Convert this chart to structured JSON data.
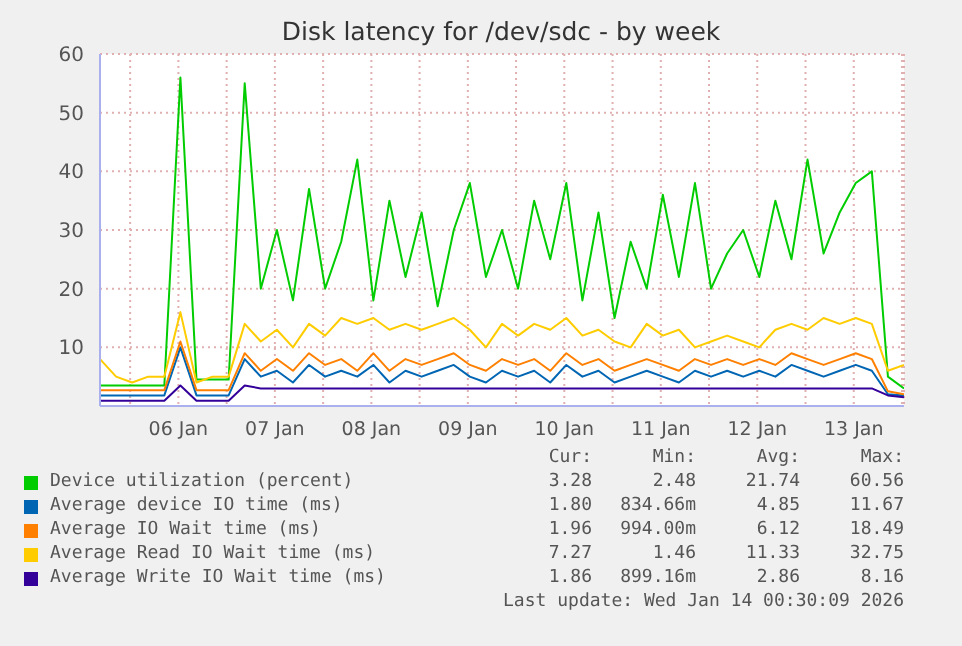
{
  "chart_data": {
    "type": "line",
    "title": "Disk latency for /dev/sdc - by week",
    "x": [
      "2026-01-05T16:30",
      "2026-01-05T20:30",
      "2026-01-06T00:30",
      "2026-01-06T04:30",
      "2026-01-06T08:30",
      "2026-01-06T12:30",
      "2026-01-06T16:30",
      "2026-01-06T20:30",
      "2026-01-07T00:30",
      "2026-01-07T04:30",
      "2026-01-07T08:30",
      "2026-01-07T12:30",
      "2026-01-07T16:30",
      "2026-01-07T20:30",
      "2026-01-08T00:30",
      "2026-01-08T04:30",
      "2026-01-08T08:30",
      "2026-01-08T12:30",
      "2026-01-08T16:30",
      "2026-01-08T20:30",
      "2026-01-09T00:30",
      "2026-01-09T04:30",
      "2026-01-09T08:30",
      "2026-01-09T12:30",
      "2026-01-09T16:30",
      "2026-01-09T20:30",
      "2026-01-10T00:30",
      "2026-01-10T04:30",
      "2026-01-10T08:30",
      "2026-01-10T12:30",
      "2026-01-10T16:30",
      "2026-01-10T20:30",
      "2026-01-11T00:30",
      "2026-01-11T04:30",
      "2026-01-11T08:30",
      "2026-01-11T12:30",
      "2026-01-11T16:30",
      "2026-01-11T20:30",
      "2026-01-12T00:30",
      "2026-01-12T04:30",
      "2026-01-12T08:30",
      "2026-01-12T12:30",
      "2026-01-12T16:30",
      "2026-01-12T20:30",
      "2026-01-13T00:30",
      "2026-01-13T04:30",
      "2026-01-13T08:30",
      "2026-01-13T12:30",
      "2026-01-13T16:30",
      "2026-01-13T20:30",
      "2026-01-14T00:30"
    ],
    "series": [
      {
        "name": "Device utilization (percent)",
        "color": "#00cc00",
        "values": [
          3.5,
          3.5,
          3.5,
          3.5,
          3.5,
          56,
          4.5,
          4.5,
          4.5,
          55,
          20,
          30,
          18,
          37,
          20,
          28,
          42,
          18,
          35,
          22,
          33,
          17,
          30,
          38,
          22,
          30,
          20,
          35,
          25,
          38,
          18,
          33,
          15,
          28,
          20,
          36,
          22,
          38,
          20,
          26,
          30,
          22,
          35,
          25,
          42,
          26,
          33,
          38,
          40,
          5,
          3
        ]
      },
      {
        "name": "Average device IO time (ms)",
        "color": "#0066b3",
        "values": [
          1.8,
          1.8,
          1.8,
          1.8,
          1.8,
          10,
          1.8,
          1.8,
          1.8,
          8,
          5,
          6,
          4,
          7,
          5,
          6,
          5,
          7,
          4,
          6,
          5,
          6,
          7,
          5,
          4,
          6,
          5,
          6,
          4,
          7,
          5,
          6,
          4,
          5,
          6,
          5,
          4,
          6,
          5,
          6,
          5,
          6,
          5,
          7,
          6,
          5,
          6,
          7,
          6,
          2,
          1.8
        ]
      },
      {
        "name": "Average IO Wait time (ms)",
        "color": "#ff8000",
        "values": [
          2.7,
          2.7,
          2.7,
          2.7,
          2.7,
          11,
          2.7,
          2.7,
          2.7,
          9,
          6,
          8,
          6,
          9,
          7,
          8,
          6,
          9,
          6,
          8,
          7,
          8,
          9,
          7,
          6,
          8,
          7,
          8,
          6,
          9,
          7,
          8,
          6,
          7,
          8,
          7,
          6,
          8,
          7,
          8,
          7,
          8,
          7,
          9,
          8,
          7,
          8,
          9,
          8,
          2.5,
          2
        ]
      },
      {
        "name": "Average Read IO Wait time (ms)",
        "color": "#ffcc00",
        "values": [
          8,
          5,
          4,
          5,
          5,
          16,
          4,
          5,
          5,
          14,
          11,
          13,
          10,
          14,
          12,
          15,
          14,
          15,
          13,
          14,
          13,
          14,
          15,
          13,
          10,
          14,
          12,
          14,
          13,
          15,
          12,
          13,
          11,
          10,
          14,
          12,
          13,
          10,
          11,
          12,
          11,
          10,
          13,
          14,
          13,
          15,
          14,
          15,
          14,
          6,
          7
        ]
      },
      {
        "name": "Average Write IO Wait time (ms)",
        "color": "#330099",
        "values": [
          0.9,
          0.9,
          0.9,
          0.9,
          0.9,
          3.5,
          0.9,
          0.9,
          0.9,
          3.5,
          3,
          3,
          3,
          3,
          3,
          3,
          3,
          3,
          3,
          3,
          3,
          3,
          3,
          3,
          3,
          3,
          3,
          3,
          3,
          3,
          3,
          3,
          3,
          3,
          3,
          3,
          3,
          3,
          3,
          3,
          3,
          3,
          3,
          3,
          3,
          3,
          3,
          3,
          3,
          1.8,
          1.5
        ]
      }
    ],
    "xlim": [
      "2026-01-05T16:30",
      "2026-01-14T00:30"
    ],
    "xticks": [
      {
        "value": "2026-01-06T00:00",
        "label": null
      },
      {
        "value": "2026-01-06T12:00",
        "label": "06 Jan"
      },
      {
        "value": "2026-01-07T00:00",
        "label": null
      },
      {
        "value": "2026-01-07T12:00",
        "label": "07 Jan"
      },
      {
        "value": "2026-01-08T00:00",
        "label": null
      },
      {
        "value": "2026-01-08T12:00",
        "label": "08 Jan"
      },
      {
        "value": "2026-01-09T00:00",
        "label": null
      },
      {
        "value": "2026-01-09T12:00",
        "label": "09 Jan"
      },
      {
        "value": "2026-01-10T00:00",
        "label": null
      },
      {
        "value": "2026-01-10T12:00",
        "label": "10 Jan"
      },
      {
        "value": "2026-01-11T00:00",
        "label": null
      },
      {
        "value": "2026-01-11T12:00",
        "label": "11 Jan"
      },
      {
        "value": "2026-01-12T00:00",
        "label": null
      },
      {
        "value": "2026-01-12T12:00",
        "label": "12 Jan"
      },
      {
        "value": "2026-01-13T00:00",
        "label": null
      },
      {
        "value": "2026-01-13T12:00",
        "label": "13 Jan"
      },
      {
        "value": "2026-01-14T00:00",
        "label": null
      }
    ],
    "ylim": [
      0,
      60
    ],
    "yticks": [
      10,
      20,
      30,
      40,
      50,
      60
    ],
    "grid": true,
    "legend": "bottom",
    "annotations": [
      "Cur:",
      "Min:",
      "Avg:",
      "Max:",
      "3.28",
      "2.48",
      "21.74",
      "60.56",
      "1.80",
      "834.66m",
      "4.85",
      "11.67",
      "1.96",
      "994.00m",
      "6.12",
      "18.49",
      "7.27",
      "1.46",
      "11.33",
      "32.75",
      "1.86",
      "899.16m",
      "2.86",
      "8.16",
      "Last update: Wed Jan 14 00:30:09 2026"
    ]
  }
}
